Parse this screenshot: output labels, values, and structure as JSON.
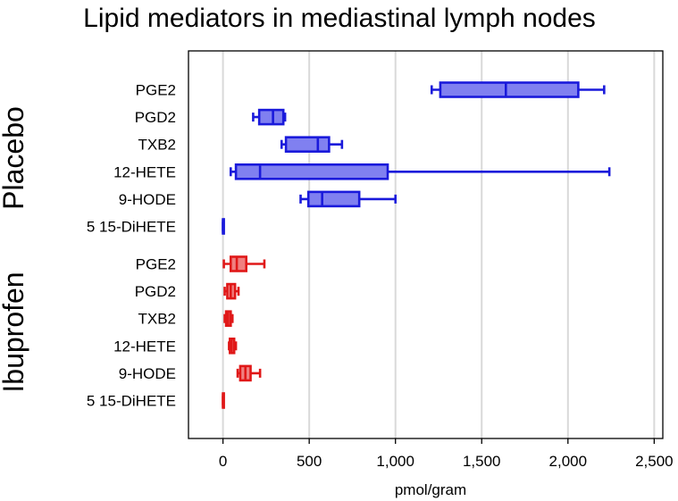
{
  "chart_data": {
    "type": "box",
    "title": "Lipid mediators in mediastinal lymph nodes",
    "xlabel": "pmol/gram",
    "xlim": [
      -200,
      2550
    ],
    "xticks": [
      0,
      500,
      1000,
      1500,
      2000,
      2500
    ],
    "xtick_labels": [
      "0",
      "500",
      "1,000",
      "1,500",
      "2,000",
      "2,500"
    ],
    "grid": "vertical",
    "groups": [
      {
        "name": "Placebo",
        "color": "#1a1adb",
        "fill": "#8080f0",
        "items": [
          {
            "label": "PGE2",
            "whisker_low": 1210,
            "q1": 1260,
            "median": 1640,
            "q3": 2060,
            "whisker_high": 2210
          },
          {
            "label": "PGD2",
            "whisker_low": 175,
            "q1": 210,
            "median": 290,
            "q3": 350,
            "whisker_high": 360
          },
          {
            "label": "TXB2",
            "whisker_low": 340,
            "q1": 365,
            "median": 550,
            "q3": 615,
            "whisker_high": 690
          },
          {
            "label": "12-HETE",
            "whisker_low": 45,
            "q1": 75,
            "median": 215,
            "q3": 955,
            "whisker_high": 2240
          },
          {
            "label": "9-HODE",
            "whisker_low": 450,
            "q1": 495,
            "median": 575,
            "q3": 790,
            "whisker_high": 1000
          },
          {
            "label": "5 15-DiHETE",
            "whisker_low": 0,
            "q1": 0,
            "median": 0,
            "q3": 2,
            "whisker_high": 3
          }
        ]
      },
      {
        "name": "Ibuprofen",
        "color": "#e01818",
        "fill": "#f08080",
        "items": [
          {
            "label": "PGE2",
            "whisker_low": 5,
            "q1": 45,
            "median": 80,
            "q3": 135,
            "whisker_high": 240
          },
          {
            "label": "PGD2",
            "whisker_low": 10,
            "q1": 25,
            "median": 45,
            "q3": 70,
            "whisker_high": 90
          },
          {
            "label": "TXB2",
            "whisker_low": 10,
            "q1": 18,
            "median": 30,
            "q3": 45,
            "whisker_high": 55
          },
          {
            "label": "12-HETE",
            "whisker_low": 35,
            "q1": 40,
            "median": 50,
            "q3": 65,
            "whisker_high": 75
          },
          {
            "label": "9-HODE",
            "whisker_low": 85,
            "q1": 100,
            "median": 130,
            "q3": 160,
            "whisker_high": 215
          },
          {
            "label": "5 15-DiHETE",
            "whisker_low": 0,
            "q1": 0,
            "median": 0,
            "q3": 2,
            "whisker_high": 3
          }
        ]
      }
    ]
  }
}
